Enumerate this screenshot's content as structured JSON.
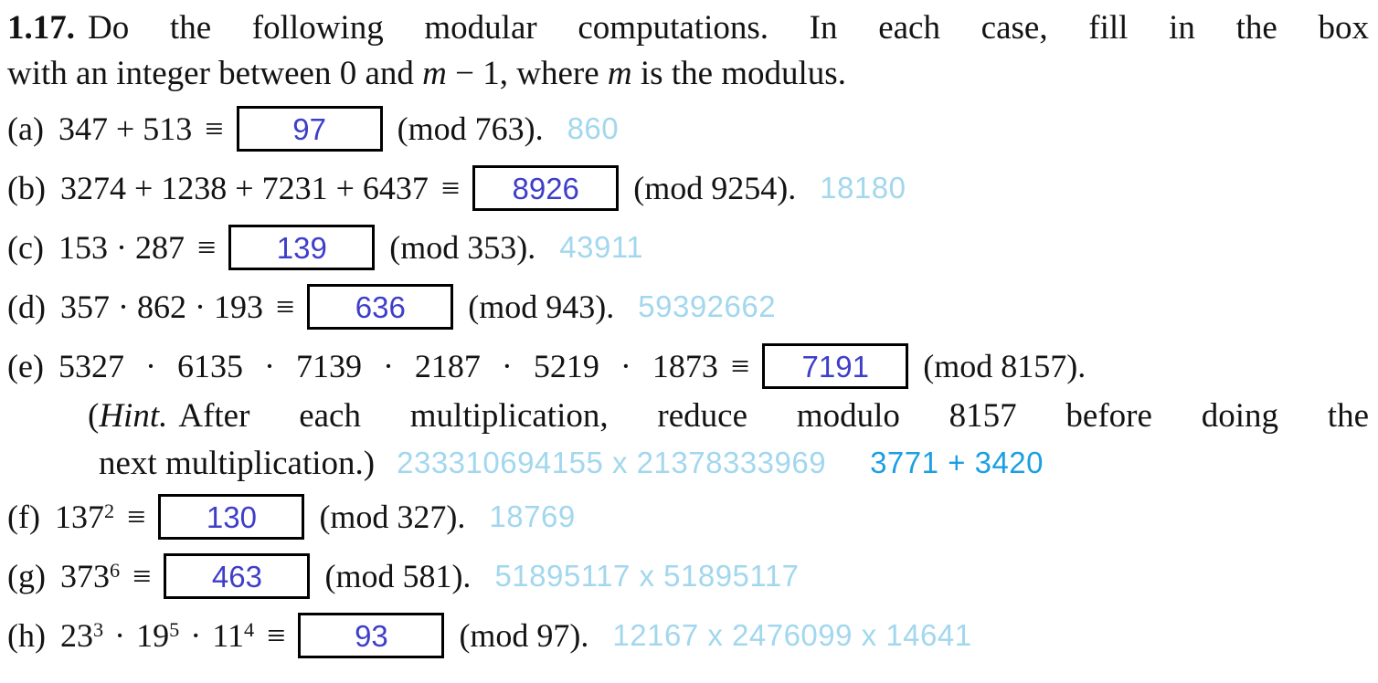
{
  "header": {
    "number": "1.17.",
    "line1": "Do the following modular computations. In each case, fill in the box",
    "line2": [
      "with an integer between 0 and ",
      "m",
      " − 1, where ",
      "m",
      " is the modulus."
    ]
  },
  "symbols": {
    "equiv": "≡",
    "dot": "·"
  },
  "colors": {
    "body_text": "#131313",
    "answer_blue": "#3e3ec9",
    "note_light_blue": "#a2d7ee",
    "note_cyan_blue": "#1b9fe2",
    "box_border": "#000000"
  },
  "problems": {
    "a": {
      "label": "(a)",
      "lhs": "347 + 513",
      "answer": "97",
      "mod": "(mod 763).",
      "note": "860"
    },
    "b": {
      "label": "(b)",
      "lhs": "3274 + 1238 + 7231 + 6437",
      "answer": "8926",
      "mod": "(mod 9254).",
      "note": "18180"
    },
    "c": {
      "label": "(c)",
      "lhs": "153 · 287",
      "answer": "139",
      "mod": "(mod 353).",
      "note": "43911"
    },
    "d": {
      "label": "(d)",
      "lhs": "357 · 862 · 193",
      "answer": "636",
      "mod": "(mod 943).",
      "note": "59392662"
    },
    "e": {
      "label": "(e)",
      "lhs": "5327 · 6135 · 7139 · 2187 · 5219 · 1873",
      "answer": "7191",
      "mod": "(mod 8157)."
    },
    "f": {
      "label": "(f)",
      "base": "137",
      "exp": "2",
      "answer": "130",
      "mod": "(mod 327).",
      "note": "18769"
    },
    "g": {
      "label": "(g)",
      "base": "373",
      "exp": "6",
      "answer": "463",
      "mod": "(mod 581).",
      "note": "51895117 x 51895117"
    },
    "h": {
      "label": "(h)",
      "terms": [
        {
          "base": "23",
          "exp": "3"
        },
        {
          "base": "19",
          "exp": "5"
        },
        {
          "base": "11",
          "exp": "4"
        }
      ],
      "answer": "93",
      "mod": "(mod 97).",
      "note": "12167 x 2476099 x 14641"
    }
  },
  "hint": {
    "open_paren": "(",
    "word": "Hint.",
    "line1_rest": "After each multiplication, reduce modulo 8157 before doing the",
    "line2": "next multiplication.)",
    "work_light": "233310694155 x 21378333969",
    "work_blue": "3771 + 3420"
  }
}
